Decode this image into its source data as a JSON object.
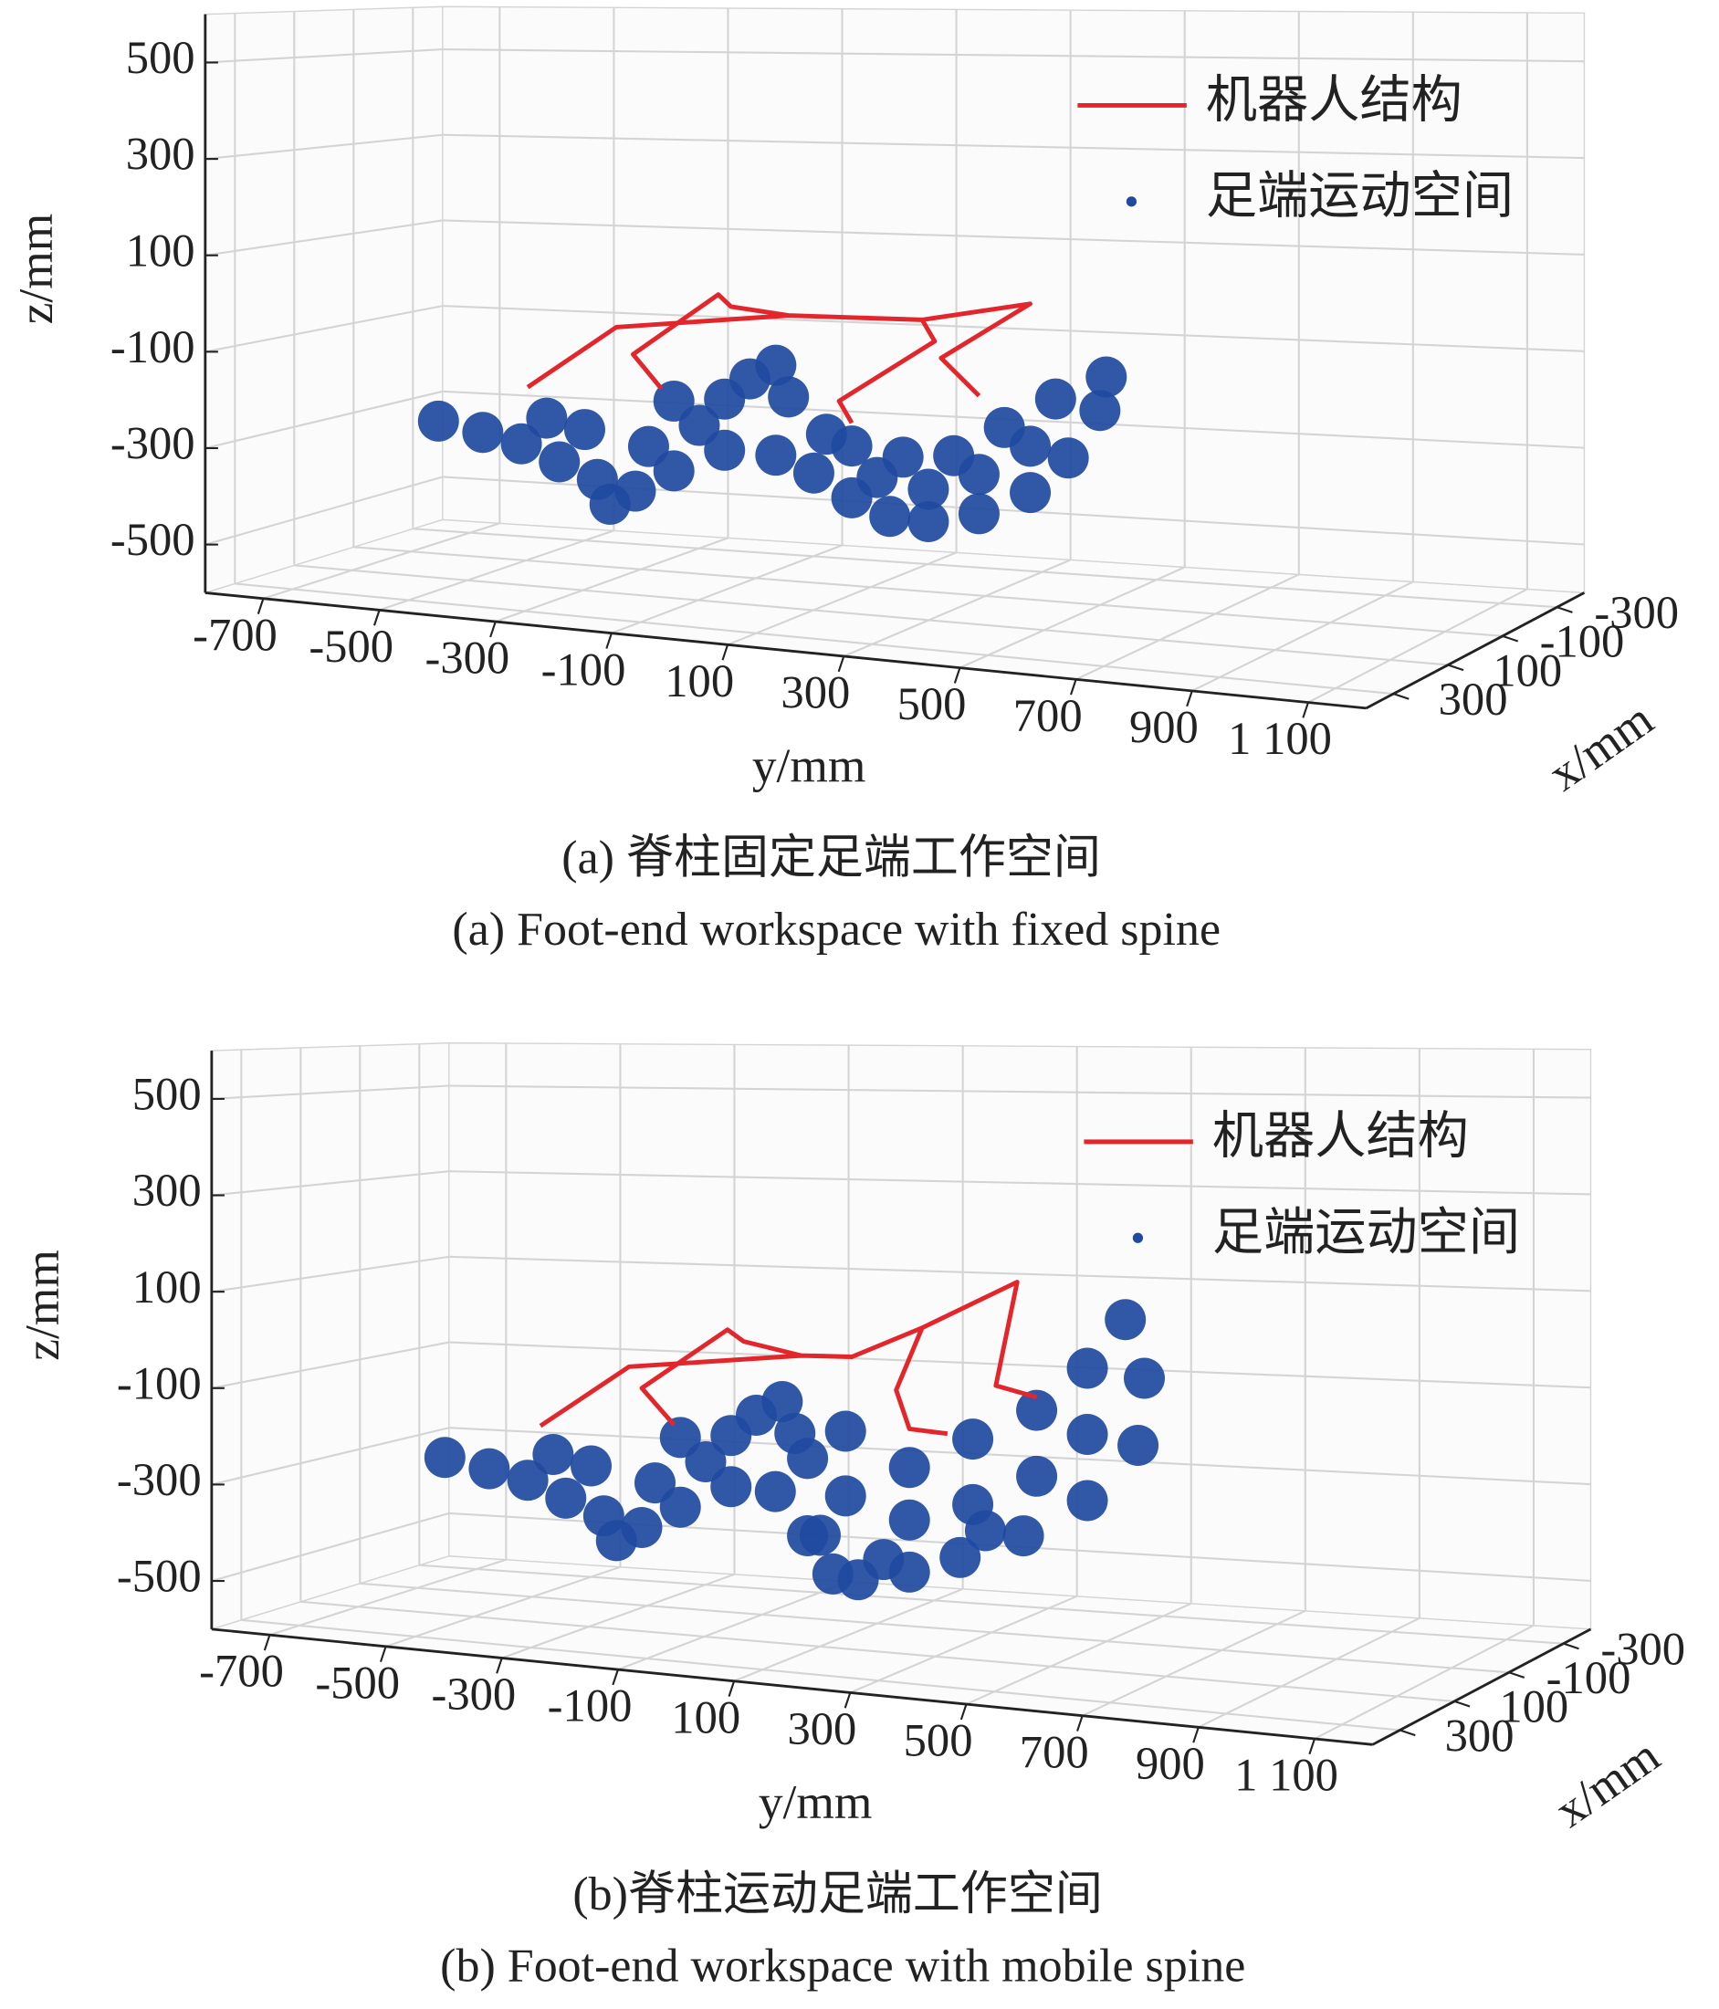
{
  "chart_data": [
    {
      "type": "scatter3d",
      "caption": "(a) 脊柱固定足端工作空间",
      "caption_en": "(a) Foot-end workspace with fixed spine",
      "xlabel": "x/mm",
      "ylabel": "y/mm",
      "zlabel": "z/mm",
      "xlim": [
        -400,
        400
      ],
      "ylim": [
        -800,
        1200
      ],
      "zlim": [
        -600,
        600
      ],
      "xticks": [
        -300,
        -100,
        100,
        300
      ],
      "yticks": [
        -700,
        -500,
        -300,
        -100,
        100,
        300,
        500,
        700,
        900,
        {
          "value": 1100,
          "label": "1 100"
        }
      ],
      "zticks": [
        -500,
        -300,
        -100,
        100,
        300,
        500
      ],
      "grid": true,
      "legend": "upper right",
      "series": [
        {
          "name": "机器人结构",
          "mode": "line",
          "color": "#e3262b",
          "x": [
            0,
            0,
            0,
            0,
            0,
            0,
            0,
            null,
            0,
            0,
            0,
            0,
            0,
            null,
            0,
            0,
            0,
            0
          ],
          "y": [
            -446,
            -292,
            7,
            239,
            427,
            272,
            338,
            null,
            -214,
            -263,
            -115,
            -93,
            7,
            null,
            239,
            261,
            95,
            117
          ],
          "z": [
            -200,
            -60,
            -15,
            -9,
            36,
            -86,
            -159,
            null,
            -185,
            -116,
            21,
            -3,
            -15,
            null,
            -9,
            -52,
            -188,
            -232
          ]
        },
        {
          "name": "足端运动空间",
          "mode": "markers",
          "color": "#1f4aa0",
          "x": [
            0,
            0,
            0,
            0,
            0,
            0,
            0,
            0,
            0,
            0,
            0,
            0,
            0,
            0,
            0,
            0,
            0,
            0,
            0,
            0,
            0,
            0,
            0,
            0,
            0,
            0,
            0,
            0,
            0,
            0,
            0,
            0,
            0,
            0,
            0,
            0,
            0,
            0
          ],
          "y": [
            -601,
            -524,
            -457,
            -391,
            -325,
            -259,
            -347,
            -236,
            -192,
            -148,
            -104,
            -60,
            -15,
            7,
            -104,
            -303,
            -413,
            -192,
            -15,
            51,
            117,
            183,
            250,
            338,
            427,
            493,
            548,
            559,
            471,
            382,
            294,
            206,
            117,
            73,
            427,
            338,
            250,
            161
          ],
          "z": [
            -286,
            -304,
            -323,
            -356,
            -388,
            -407,
            -283,
            -310,
            -358,
            -258,
            -199,
            -153,
            -121,
            -186,
            -307,
            -439,
            -264,
            -210,
            -310,
            -342,
            -388,
            -421,
            -426,
            -402,
            -351,
            -275,
            -174,
            -105,
            -156,
            -221,
            -286,
            -296,
            -280,
            -259,
            -256,
            -321,
            -359,
            -342
          ]
        }
      ]
    },
    {
      "type": "scatter3d",
      "caption": "(b)脊柱运动足端工作空间",
      "caption_en": "(b) Foot-end workspace with mobile spine",
      "xlabel": "x/mm",
      "ylabel": "y/mm",
      "zlabel": "z/mm",
      "xlim": [
        -400,
        400
      ],
      "ylim": [
        -800,
        1200
      ],
      "zlim": [
        -600,
        600
      ],
      "xticks": [
        -300,
        -100,
        100,
        300
      ],
      "yticks": [
        -700,
        -500,
        -300,
        -100,
        100,
        300,
        500,
        700,
        900,
        {
          "value": 1100,
          "label": "1 100"
        }
      ],
      "zticks": [
        -500,
        -300,
        -100,
        100,
        300,
        500
      ],
      "grid": true,
      "legend": "upper right",
      "series": [
        {
          "name": "机器人结构",
          "mode": "line",
          "color": "#e3262b",
          "x": [
            0,
            0,
            0,
            0,
            0,
            0,
            0,
            0,
            null,
            0,
            0,
            0,
            0,
            0,
            null,
            0,
            0,
            0,
            0
          ],
          "y": [
            -435,
            -281,
            18,
            106,
            228,
            393,
            356,
            427,
            null,
            -203,
            -259,
            -110,
            -82,
            18,
            null,
            228,
            183,
            206,
            272
          ],
          "z": [
            -204,
            -66,
            -22,
            -19,
            49,
            153,
            -62,
            -81,
            null,
            -184,
            -110,
            24,
            1,
            -22,
            null,
            49,
            -83,
            -162,
            -167
          ]
        },
        {
          "name": "足端运动空间",
          "mode": "markers",
          "color": "#1f4aa0",
          "x": [
            0,
            0,
            0,
            0,
            0,
            0,
            0,
            0,
            0,
            0,
            0,
            0,
            0,
            0,
            0,
            0,
            0,
            0,
            0,
            0,
            0,
            0,
            0,
            0,
            0,
            0,
            0,
            0,
            0,
            0,
            0,
            0,
            0,
            0,
            0,
            0,
            0,
            0,
            0,
            0,
            0,
            0,
            0
          ],
          "y": [
            -601,
            -524,
            -457,
            -391,
            -325,
            -259,
            -347,
            -236,
            -192,
            -148,
            -104,
            -60,
            -15,
            7,
            -104,
            -303,
            -413,
            -192,
            -27,
            51,
            117,
            206,
            294,
            404,
            515,
            603,
            614,
            581,
            515,
            515,
            427,
            427,
            316,
            316,
            206,
            206,
            95,
            95,
            29,
            29,
            161,
            338,
            73
          ],
          "z": [
            -286,
            -304,
            -323,
            -356,
            -388,
            -407,
            -283,
            -310,
            -358,
            -258,
            -199,
            -153,
            -121,
            -186,
            -307,
            -439,
            -264,
            -210,
            -311,
            -396,
            -483,
            -459,
            -421,
            -367,
            -286,
            -167,
            -30,
            87,
            -16,
            -151,
            -108,
            -243,
            -175,
            -310,
            -242,
            -351,
            -175,
            -310,
            -399,
            -237,
            -437,
            -362,
            -475
          ]
        }
      ]
    }
  ]
}
